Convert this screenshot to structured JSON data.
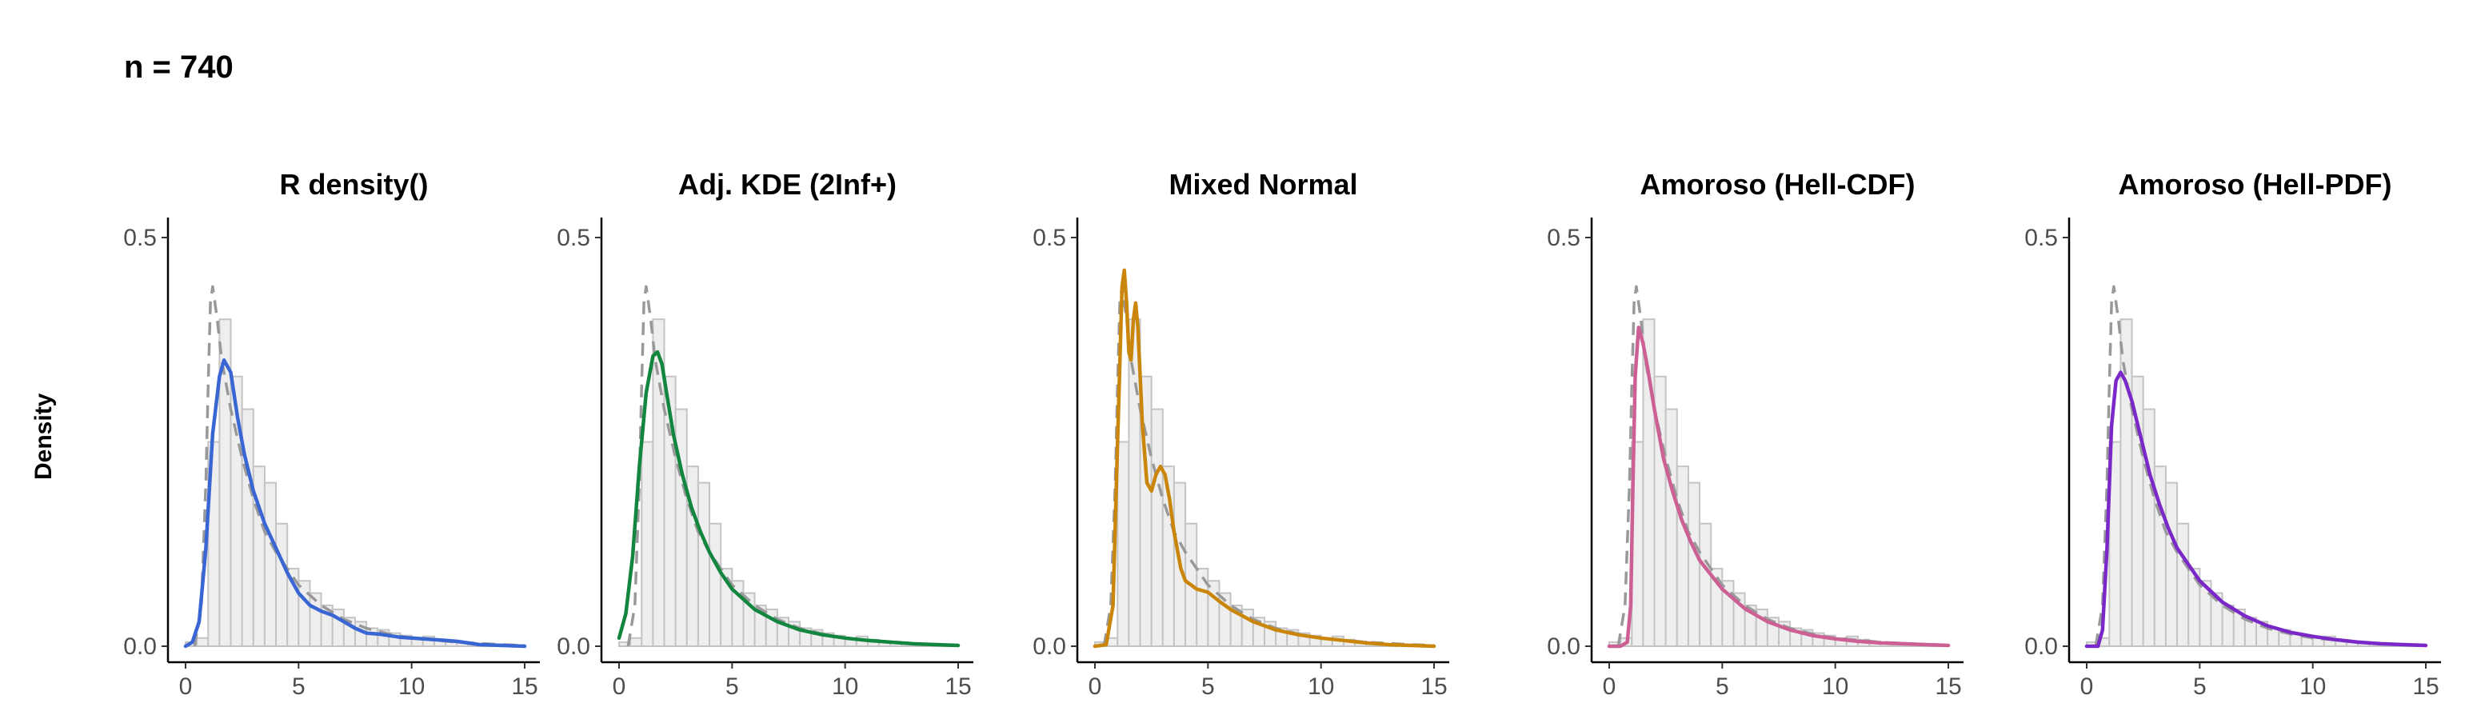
{
  "header": {
    "title": "n = 740"
  },
  "chart_data": {
    "type": "bar",
    "ylabel": "Density",
    "xlim": [
      0,
      15
    ],
    "ylim": [
      0,
      0.5
    ],
    "x_ticks": [
      0,
      5,
      10,
      15
    ],
    "y_ticks": [
      0.0,
      0.5
    ],
    "y_tick_labels": [
      "0.0",
      "0.5"
    ],
    "grid": false,
    "histogram": {
      "bin_edges": [
        0,
        0.5,
        1,
        1.5,
        2,
        2.5,
        3,
        3.5,
        4,
        4.5,
        5,
        5.5,
        6,
        6.5,
        7,
        7.5,
        8,
        8.5,
        9,
        9.5,
        10,
        10.5,
        11,
        11.5,
        12,
        12.5,
        13,
        13.5,
        14,
        14.5,
        15
      ],
      "density": [
        0.005,
        0.01,
        0.25,
        0.4,
        0.33,
        0.29,
        0.22,
        0.2,
        0.15,
        0.095,
        0.08,
        0.065,
        0.05,
        0.045,
        0.035,
        0.03,
        0.022,
        0.02,
        0.016,
        0.013,
        0.01,
        0.012,
        0.008,
        0.006,
        0.004,
        0.003,
        0.002,
        0.002,
        0.001,
        0.001
      ]
    },
    "reference_curve": {
      "style": "dashed",
      "color": "#999999",
      "x": [
        0.4,
        0.7,
        0.9,
        1.0,
        1.1,
        1.2,
        1.4,
        1.6,
        1.8,
        2.0,
        2.5,
        3.0,
        3.5,
        4.0,
        5.0,
        6.0,
        7.0,
        8.0,
        9.0,
        10.0,
        12.0,
        14.0,
        15.0
      ],
      "y": [
        0.0,
        0.05,
        0.2,
        0.32,
        0.42,
        0.44,
        0.4,
        0.35,
        0.32,
        0.29,
        0.23,
        0.18,
        0.14,
        0.115,
        0.075,
        0.05,
        0.033,
        0.022,
        0.015,
        0.01,
        0.005,
        0.002,
        0.001
      ]
    },
    "panels": [
      {
        "title": "R density()",
        "color": "#3a66d4",
        "x": [
          0,
          0.3,
          0.6,
          0.9,
          1.2,
          1.5,
          1.7,
          2.0,
          2.3,
          2.6,
          3.0,
          3.5,
          4.0,
          4.5,
          5.0,
          5.5,
          6.0,
          6.5,
          7.0,
          7.5,
          8.0,
          8.5,
          9.0,
          9.5,
          10.0,
          10.5,
          11.0,
          11.5,
          12.0,
          12.5,
          13.0,
          14.0,
          15.0
        ],
        "y": [
          0.0,
          0.005,
          0.03,
          0.12,
          0.26,
          0.33,
          0.35,
          0.335,
          0.28,
          0.235,
          0.19,
          0.15,
          0.12,
          0.09,
          0.065,
          0.05,
          0.043,
          0.038,
          0.03,
          0.022,
          0.016,
          0.015,
          0.013,
          0.011,
          0.01,
          0.009,
          0.008,
          0.007,
          0.006,
          0.004,
          0.002,
          0.001,
          0.0
        ]
      },
      {
        "title": "Adj. KDE (2Inf+)",
        "color": "#12853f",
        "x": [
          0,
          0.3,
          0.6,
          0.9,
          1.2,
          1.5,
          1.7,
          1.9,
          2.1,
          2.4,
          2.8,
          3.2,
          3.6,
          4.0,
          4.5,
          5.0,
          6.0,
          7.0,
          8.0,
          9.0,
          10.0,
          11.0,
          12.0,
          13.0,
          14.0,
          15.0
        ],
        "y": [
          0.01,
          0.04,
          0.11,
          0.22,
          0.31,
          0.355,
          0.36,
          0.345,
          0.31,
          0.26,
          0.21,
          0.17,
          0.14,
          0.115,
          0.09,
          0.07,
          0.045,
          0.03,
          0.02,
          0.014,
          0.01,
          0.007,
          0.005,
          0.003,
          0.002,
          0.001
        ]
      },
      {
        "title": "Mixed Normal",
        "color": "#c9860a",
        "x": [
          0,
          0.5,
          0.8,
          1.0,
          1.2,
          1.3,
          1.4,
          1.5,
          1.6,
          1.7,
          1.8,
          1.9,
          2.1,
          2.3,
          2.5,
          2.7,
          2.9,
          3.1,
          3.3,
          3.5,
          3.8,
          4.0,
          4.5,
          5.0,
          5.5,
          6.0,
          7.0,
          8.0,
          9.0,
          10.0,
          11.0,
          12.0,
          13.0,
          14.0,
          15.0
        ],
        "y": [
          0.0,
          0.002,
          0.05,
          0.25,
          0.44,
          0.46,
          0.42,
          0.36,
          0.35,
          0.4,
          0.42,
          0.39,
          0.27,
          0.2,
          0.19,
          0.21,
          0.22,
          0.21,
          0.18,
          0.14,
          0.095,
          0.08,
          0.07,
          0.066,
          0.055,
          0.045,
          0.03,
          0.02,
          0.014,
          0.01,
          0.007,
          0.004,
          0.002,
          0.001,
          0.0
        ]
      },
      {
        "title": "Amoroso (Hell-CDF)",
        "color": "#cc5f94",
        "x": [
          0,
          0.5,
          0.8,
          0.95,
          1.05,
          1.15,
          1.3,
          1.5,
          1.7,
          2.0,
          2.4,
          2.8,
          3.2,
          3.6,
          4.0,
          5.0,
          6.0,
          7.0,
          8.0,
          9.0,
          10.0,
          11.0,
          12.0,
          13.0,
          14.0,
          15.0
        ],
        "y": [
          0.0,
          0.0,
          0.005,
          0.05,
          0.2,
          0.33,
          0.39,
          0.37,
          0.34,
          0.29,
          0.23,
          0.19,
          0.155,
          0.128,
          0.105,
          0.07,
          0.046,
          0.03,
          0.02,
          0.013,
          0.009,
          0.006,
          0.004,
          0.003,
          0.002,
          0.001
        ]
      },
      {
        "title": "Amoroso (Hell-PDF)",
        "color": "#7a28c7",
        "x": [
          0,
          0.5,
          0.7,
          0.9,
          1.1,
          1.3,
          1.5,
          1.7,
          2.0,
          2.4,
          2.8,
          3.2,
          3.6,
          4.0,
          5.0,
          6.0,
          7.0,
          8.0,
          9.0,
          10.0,
          11.0,
          12.0,
          13.0,
          14.0,
          15.0
        ],
        "y": [
          0.0,
          0.0,
          0.02,
          0.12,
          0.27,
          0.325,
          0.335,
          0.325,
          0.3,
          0.255,
          0.21,
          0.175,
          0.145,
          0.12,
          0.08,
          0.054,
          0.037,
          0.025,
          0.017,
          0.012,
          0.008,
          0.005,
          0.003,
          0.002,
          0.001
        ]
      }
    ]
  }
}
